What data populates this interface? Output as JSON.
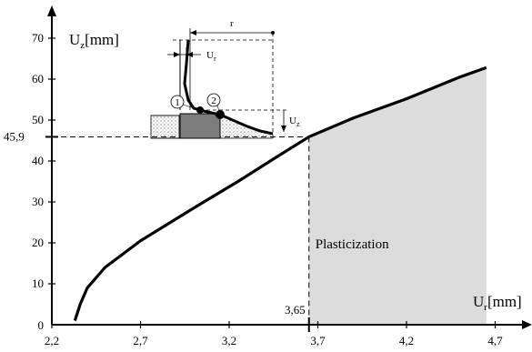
{
  "chart_data": {
    "type": "line",
    "xlabel": {
      "main": "U",
      "sub": "r",
      "unit": "[mm]"
    },
    "ylabel": {
      "main": "U",
      "sub": "z",
      "unit": "[mm]"
    },
    "xlim": [
      2.2,
      4.8
    ],
    "ylim": [
      0,
      78
    ],
    "x_ticks": [
      2.2,
      2.7,
      3.2,
      3.7,
      4.2,
      4.7
    ],
    "x_tick_labels": [
      "2,2",
      "2,7",
      "3,2",
      "3,7",
      "4,2",
      "4,7"
    ],
    "y_ticks": [
      0,
      10,
      20,
      30,
      40,
      50,
      60,
      70
    ],
    "y_tick_labels": [
      "0",
      "10",
      "20",
      "30",
      "40",
      "50",
      "60",
      "70"
    ],
    "series": [
      {
        "color": "#000000",
        "points": [
          [
            2.33,
            1
          ],
          [
            2.36,
            5
          ],
          [
            2.4,
            9
          ],
          [
            2.5,
            14
          ],
          [
            2.7,
            20.5
          ],
          [
            3.0,
            28.5
          ],
          [
            3.25,
            35
          ],
          [
            3.45,
            40.5
          ],
          [
            3.65,
            45.9
          ],
          [
            3.9,
            50.5
          ],
          [
            4.2,
            55.2
          ],
          [
            4.5,
            60.5
          ],
          [
            4.65,
            62.8
          ]
        ]
      }
    ],
    "highlight": {
      "x_from": 3.65,
      "x_to": 4.65,
      "label": "Plasticization",
      "color": "#dcdcdc"
    },
    "marker": {
      "x": 3.65,
      "y": 45.9,
      "x_label": "3,65",
      "y_label": "45,9"
    },
    "grid": false
  },
  "inset": {
    "r_label": "r",
    "ur_label": {
      "main": "U",
      "sub": "r"
    },
    "uz_label": {
      "main": "U",
      "sub": "z"
    },
    "point1": "1",
    "point2": "2"
  }
}
